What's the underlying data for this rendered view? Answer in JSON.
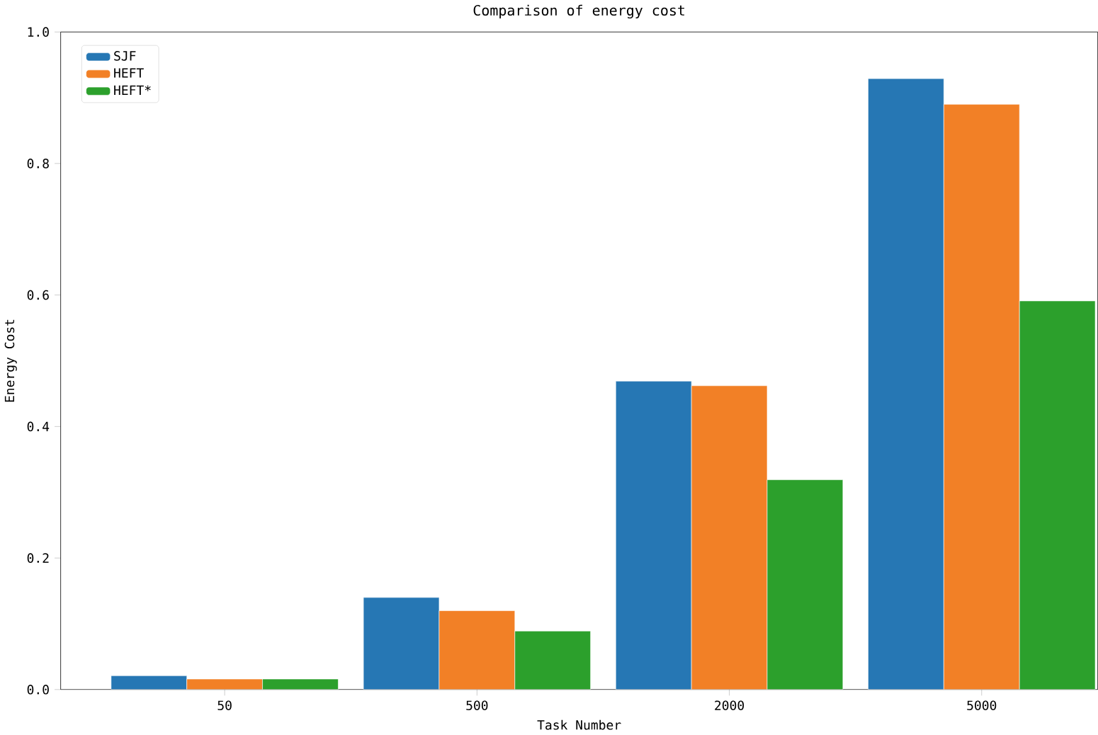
{
  "chart_data": {
    "type": "bar",
    "title": "Comparison of energy cost",
    "xlabel": "Task Number",
    "ylabel": "Energy Cost",
    "categories": [
      "50",
      "500",
      "2000",
      "5000"
    ],
    "series": [
      {
        "name": "SJF",
        "color": "#2677b4",
        "values": [
          0.021,
          0.14,
          0.469,
          0.929
        ]
      },
      {
        "name": "HEFT",
        "color": "#f28026",
        "values": [
          0.016,
          0.12,
          0.462,
          0.89
        ]
      },
      {
        "name": "HEFT*",
        "color": "#2ca02c",
        "values": [
          0.016,
          0.089,
          0.319,
          0.591
        ]
      }
    ],
    "ylim": [
      0,
      1.0
    ],
    "yticks": [
      {
        "value": 0,
        "label": "0.0"
      },
      0.2,
      0.4,
      0.6,
      0.8,
      {
        "value": 1,
        "label": "1.0"
      }
    ],
    "grid": false,
    "legend": "top left"
  }
}
